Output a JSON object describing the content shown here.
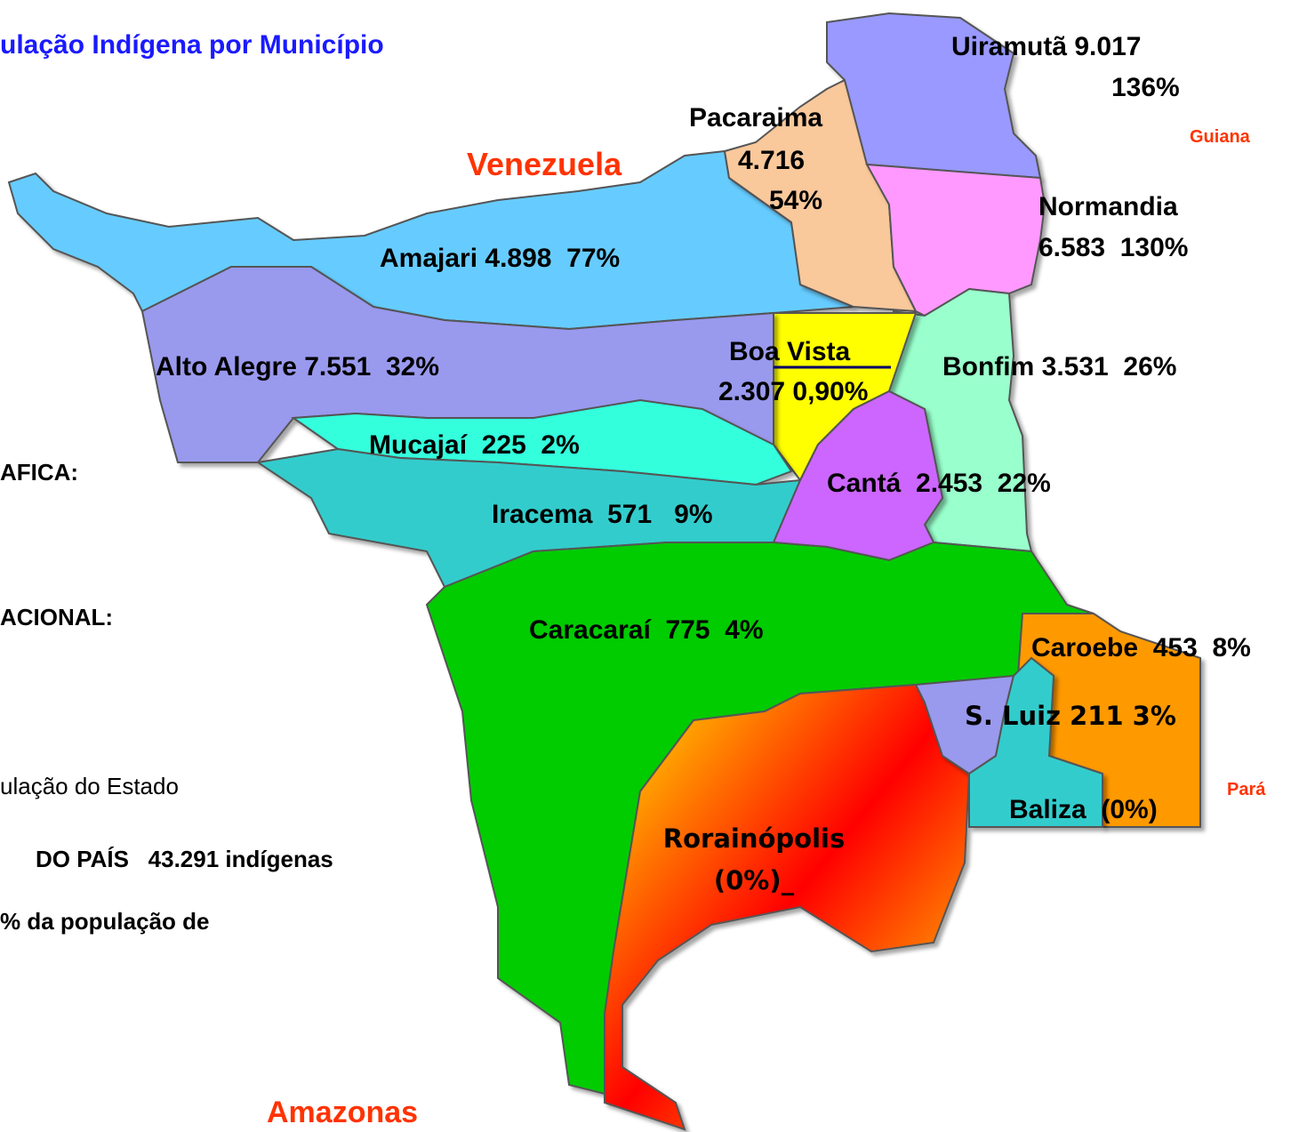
{
  "title": "ulação Indígena por Município",
  "neighbors": [
    "Venezuela",
    "Guiana",
    "Pará",
    "Amazonas"
  ],
  "municipalities": [
    {
      "lines": [
        "Uiramutã 9.017",
        "136%"
      ]
    },
    {
      "lines": [
        "Pacaraima",
        "4.716",
        "54%"
      ]
    },
    {
      "lines": [
        "Normandia",
        "6.583  130%"
      ]
    },
    {
      "lines": [
        "Amajari 4.898  77%"
      ]
    },
    {
      "lines": [
        "Alto Alegre 7.551  32%"
      ]
    },
    {
      "lines": [
        "Boa Vista",
        "2.307 0,90%"
      ]
    },
    {
      "lines": [
        "Bonfim 3.531  26%"
      ]
    },
    {
      "lines": [
        "Mucajaí  225  2%"
      ]
    },
    {
      "lines": [
        "Cantá  2.453  22%"
      ]
    },
    {
      "lines": [
        "Iracema  571   9%"
      ]
    },
    {
      "lines": [
        "Caracaraí  775  4%"
      ]
    },
    {
      "lines": [
        "Caroebe  453  8%"
      ]
    },
    {
      "lines": [
        "S. Luiz 211 3%"
      ]
    },
    {
      "lines": [
        "Baliza  (0%)"
      ]
    },
    {
      "lines": [
        "Rorainópolis",
        "(0%)_"
      ]
    }
  ],
  "side_text": [
    "AFICA:",
    "ACIONAL:",
    "ulação do Estado",
    "DO PAÍS   43.291 indígenas",
    "% da população de"
  ]
}
